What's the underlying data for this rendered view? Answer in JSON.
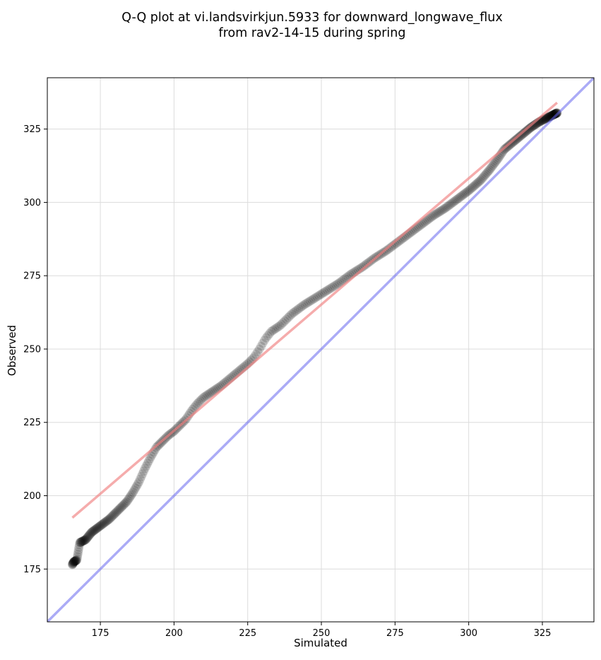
{
  "chart_data": {
    "type": "scatter",
    "title_lines": [
      "Q-Q plot at vi.landsvirkjun.5933 for downward_longwave_flux",
      "from rav2-14-15 during spring"
    ],
    "xlabel": "Simulated",
    "ylabel": "Observed",
    "xlim": [
      157,
      342.5
    ],
    "ylim": [
      157,
      342.5
    ],
    "xticks": [
      175,
      200,
      225,
      250,
      275,
      300,
      325
    ],
    "yticks": [
      175,
      200,
      225,
      250,
      275,
      300,
      325
    ],
    "grid": true,
    "quantile_anchors": [
      [
        165.5,
        176.5
      ],
      [
        166,
        177.5
      ],
      [
        167,
        178
      ],
      [
        168,
        184
      ],
      [
        170,
        185
      ],
      [
        172,
        187.5
      ],
      [
        174,
        189
      ],
      [
        176,
        190.5
      ],
      [
        178,
        192
      ],
      [
        180,
        194
      ],
      [
        182,
        196
      ],
      [
        184,
        198
      ],
      [
        186,
        201
      ],
      [
        188,
        204.5
      ],
      [
        190,
        209
      ],
      [
        192,
        213
      ],
      [
        194,
        216.5
      ],
      [
        196,
        218.5
      ],
      [
        198,
        220.5
      ],
      [
        200,
        222
      ],
      [
        202,
        224
      ],
      [
        204,
        226
      ],
      [
        206,
        229
      ],
      [
        208,
        231.5
      ],
      [
        210,
        233.5
      ],
      [
        213,
        235.5
      ],
      [
        216,
        237.5
      ],
      [
        219,
        240
      ],
      [
        222,
        242.5
      ],
      [
        225,
        245
      ],
      [
        227,
        247
      ],
      [
        229,
        250
      ],
      [
        231,
        253.5
      ],
      [
        233,
        256
      ],
      [
        236,
        258
      ],
      [
        240,
        262
      ],
      [
        244,
        265
      ],
      [
        248,
        267.5
      ],
      [
        252,
        270
      ],
      [
        256,
        272.5
      ],
      [
        260,
        275.5
      ],
      [
        264,
        278
      ],
      [
        268,
        281
      ],
      [
        272,
        283.5
      ],
      [
        276,
        286.5
      ],
      [
        280,
        289.5
      ],
      [
        284,
        292.5
      ],
      [
        288,
        295.5
      ],
      [
        292,
        298
      ],
      [
        296,
        301
      ],
      [
        300,
        304
      ],
      [
        304,
        307.5
      ],
      [
        307,
        311
      ],
      [
        310,
        315
      ],
      [
        312,
        318
      ],
      [
        315,
        320.5
      ],
      [
        318,
        323
      ],
      [
        321,
        325.5
      ],
      [
        324,
        327.5
      ],
      [
        327,
        329
      ],
      [
        330,
        330.5
      ]
    ],
    "series": [
      {
        "name": "quantiles",
        "kind": "scatter",
        "color": "#000000",
        "opacity": 0.15
      },
      {
        "name": "fit",
        "kind": "line",
        "x": [
          165.5,
          330
        ],
        "y": [
          192.5,
          334
        ],
        "color": "#f08080",
        "opacity": 0.65
      },
      {
        "name": "1:1",
        "kind": "line",
        "x": [
          157,
          342.5
        ],
        "y": [
          157,
          342.5
        ],
        "color": "#6666ee",
        "opacity": 0.55
      }
    ],
    "n_points": 420
  }
}
